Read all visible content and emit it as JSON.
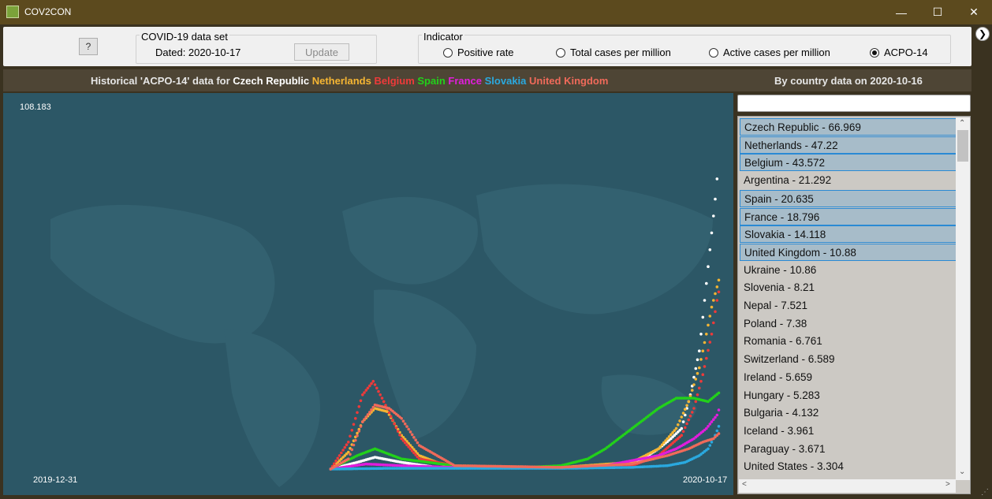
{
  "window": {
    "title": "COV2CON"
  },
  "toolbar": {
    "help_label": "?",
    "dataset_group_title": "COVID-19 data set",
    "dated_label": "Dated: 2020-10-17",
    "update_label": "Update",
    "indicator_group_title": "Indicator",
    "radios": [
      {
        "label": "Positive rate",
        "selected": false
      },
      {
        "label": "Total cases per million",
        "selected": false
      },
      {
        "label": "Active cases per million",
        "selected": false
      },
      {
        "label": "ACPO-14",
        "selected": true
      }
    ]
  },
  "chart_header": {
    "prefix": "Historical 'ACPO-14' data for",
    "countries": [
      {
        "name": "Czech Republic",
        "color": "#ffffff"
      },
      {
        "name": "Netherlands",
        "color": "#f5b533"
      },
      {
        "name": "Belgium",
        "color": "#ee3a3a"
      },
      {
        "name": "Spain",
        "color": "#22d11a"
      },
      {
        "name": "France",
        "color": "#e11ddc"
      },
      {
        "name": "Slovakia",
        "color": "#2aa9df"
      },
      {
        "name": "United Kingdom",
        "color": "#f06a5a"
      }
    ]
  },
  "right_header": {
    "prefix": "By country data on",
    "date": "2020-10-16"
  },
  "chart_data": {
    "type": "scatter",
    "y_max_label": "108.183",
    "x_start_label": "2019-12-31",
    "x_end_label": "2020-10-17",
    "ylim": [
      0,
      108.183
    ],
    "x_range_days": [
      0,
      291
    ],
    "series": [
      {
        "name": "Czech Republic",
        "color": "#ffffff",
        "points": [
          [
            70,
            0
          ],
          [
            85,
            2
          ],
          [
            95,
            3.5
          ],
          [
            110,
            2
          ],
          [
            130,
            0.5
          ],
          [
            200,
            0.3
          ],
          [
            240,
            1
          ],
          [
            255,
            6
          ],
          [
            262,
            9
          ],
          [
            268,
            12
          ],
          [
            273,
            22
          ],
          [
            278,
            35
          ],
          [
            281,
            50
          ],
          [
            283,
            60
          ],
          [
            285,
            70
          ],
          [
            287,
            80
          ],
          [
            289,
            92
          ]
        ]
      },
      {
        "name": "Netherlands",
        "color": "#f5b533",
        "points": [
          [
            70,
            0
          ],
          [
            80,
            5
          ],
          [
            88,
            14
          ],
          [
            95,
            18
          ],
          [
            102,
            17
          ],
          [
            110,
            10
          ],
          [
            120,
            4
          ],
          [
            135,
            1
          ],
          [
            200,
            0.5
          ],
          [
            240,
            2
          ],
          [
            255,
            6
          ],
          [
            265,
            12
          ],
          [
            272,
            20
          ],
          [
            278,
            30
          ],
          [
            282,
            40
          ],
          [
            285,
            48
          ],
          [
            288,
            54
          ],
          [
            290,
            58
          ]
        ]
      },
      {
        "name": "Belgium",
        "color": "#ee3a3a",
        "points": [
          [
            70,
            0
          ],
          [
            80,
            8
          ],
          [
            88,
            22
          ],
          [
            94,
            26
          ],
          [
            100,
            20
          ],
          [
            110,
            9
          ],
          [
            120,
            3
          ],
          [
            140,
            1
          ],
          [
            200,
            0.4
          ],
          [
            240,
            1
          ],
          [
            255,
            4
          ],
          [
            268,
            10
          ],
          [
            275,
            18
          ],
          [
            280,
            28
          ],
          [
            285,
            40
          ],
          [
            288,
            50
          ],
          [
            290,
            55
          ]
        ]
      },
      {
        "name": "Spain",
        "color": "#22d11a",
        "points": [
          [
            70,
            0
          ],
          [
            85,
            4
          ],
          [
            95,
            6
          ],
          [
            110,
            3
          ],
          [
            140,
            1
          ],
          [
            180,
            0.5
          ],
          [
            200,
            1
          ],
          [
            215,
            3
          ],
          [
            225,
            6
          ],
          [
            235,
            10
          ],
          [
            245,
            14
          ],
          [
            255,
            18
          ],
          [
            265,
            21
          ],
          [
            275,
            21
          ],
          [
            283,
            20
          ],
          [
            290,
            23
          ]
        ]
      },
      {
        "name": "France",
        "color": "#e11ddc",
        "points": [
          [
            70,
            0
          ],
          [
            90,
            1.5
          ],
          [
            110,
            1
          ],
          [
            150,
            0.3
          ],
          [
            200,
            0.5
          ],
          [
            225,
            1
          ],
          [
            240,
            2.5
          ],
          [
            255,
            4
          ],
          [
            265,
            6
          ],
          [
            275,
            9
          ],
          [
            282,
            12
          ],
          [
            288,
            16
          ],
          [
            290,
            19
          ]
        ]
      },
      {
        "name": "Slovakia",
        "color": "#2aa9df",
        "points": [
          [
            70,
            0
          ],
          [
            100,
            0.2
          ],
          [
            200,
            0.2
          ],
          [
            240,
            0.5
          ],
          [
            260,
            1
          ],
          [
            270,
            2
          ],
          [
            278,
            4
          ],
          [
            283,
            6
          ],
          [
            287,
            10
          ],
          [
            290,
            14
          ]
        ]
      },
      {
        "name": "United Kingdom",
        "color": "#f06a5a",
        "points": [
          [
            70,
            0
          ],
          [
            80,
            3
          ],
          [
            88,
            14
          ],
          [
            95,
            19
          ],
          [
            103,
            18
          ],
          [
            110,
            15
          ],
          [
            120,
            7
          ],
          [
            140,
            1
          ],
          [
            200,
            0.5
          ],
          [
            240,
            1.5
          ],
          [
            260,
            4
          ],
          [
            272,
            6
          ],
          [
            280,
            8
          ],
          [
            286,
            9
          ],
          [
            290,
            11
          ]
        ]
      }
    ]
  },
  "list": {
    "items": [
      {
        "label": "Czech Republic - 66.969",
        "selected": true
      },
      {
        "label": "Netherlands - 47.22",
        "selected": true
      },
      {
        "label": "Belgium - 43.572",
        "selected": true
      },
      {
        "label": "Argentina - 21.292",
        "selected": false
      },
      {
        "label": "Spain - 20.635",
        "selected": true
      },
      {
        "label": "France - 18.796",
        "selected": true
      },
      {
        "label": "Slovakia - 14.118",
        "selected": true
      },
      {
        "label": "United Kingdom - 10.88",
        "selected": true
      },
      {
        "label": "Ukraine - 10.86",
        "selected": false
      },
      {
        "label": "Slovenia - 8.21",
        "selected": false
      },
      {
        "label": "Nepal - 7.521",
        "selected": false
      },
      {
        "label": "Poland - 7.38",
        "selected": false
      },
      {
        "label": "Romania - 6.761",
        "selected": false
      },
      {
        "label": "Switzerland - 6.589",
        "selected": false
      },
      {
        "label": "Ireland - 5.659",
        "selected": false
      },
      {
        "label": "Hungary - 5.283",
        "selected": false
      },
      {
        "label": "Bulgaria - 4.132",
        "selected": false
      },
      {
        "label": "Iceland - 3.961",
        "selected": false
      },
      {
        "label": "Paraguay - 3.671",
        "selected": false
      },
      {
        "label": "United States - 3.304",
        "selected": false
      }
    ]
  }
}
